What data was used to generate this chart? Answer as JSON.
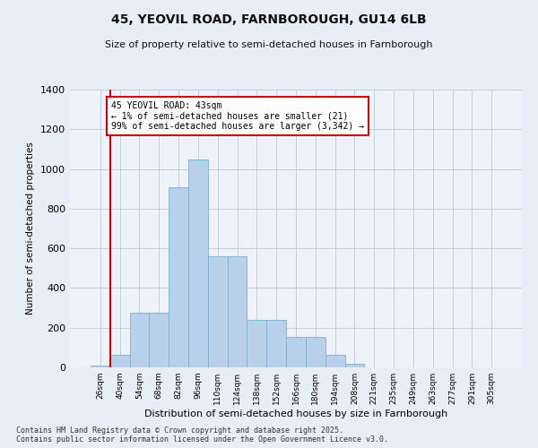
{
  "title": "45, YEOVIL ROAD, FARNBOROUGH, GU14 6LB",
  "subtitle": "Size of property relative to semi-detached houses in Farnborough",
  "xlabel": "Distribution of semi-detached houses by size in Farnborough",
  "ylabel": "Number of semi-detached properties",
  "categories": [
    "26sqm",
    "40sqm",
    "54sqm",
    "68sqm",
    "82sqm",
    "96sqm",
    "110sqm",
    "124sqm",
    "138sqm",
    "152sqm",
    "166sqm",
    "180sqm",
    "194sqm",
    "208sqm",
    "221sqm",
    "235sqm",
    "249sqm",
    "263sqm",
    "277sqm",
    "291sqm",
    "305sqm"
  ],
  "values": [
    10,
    65,
    275,
    275,
    910,
    1050,
    560,
    560,
    240,
    240,
    155,
    155,
    65,
    20,
    0,
    0,
    0,
    0,
    0,
    0,
    0
  ],
  "bar_color": "#b8d0ea",
  "bar_edge_color": "#7aafd4",
  "vline_color": "#cc0000",
  "annotation_text": "45 YEOVIL ROAD: 43sqm\n← 1% of semi-detached houses are smaller (21)\n99% of semi-detached houses are larger (3,342) →",
  "annotation_box_color": "#cc0000",
  "ylim": [
    0,
    1400
  ],
  "yticks": [
    0,
    200,
    400,
    600,
    800,
    1000,
    1200,
    1400
  ],
  "footer_line1": "Contains HM Land Registry data © Crown copyright and database right 2025.",
  "footer_line2": "Contains public sector information licensed under the Open Government Licence v3.0.",
  "bg_color": "#e8eef8",
  "plot_bg_color": "#eef3fa",
  "grid_color": "#c0cfe0"
}
